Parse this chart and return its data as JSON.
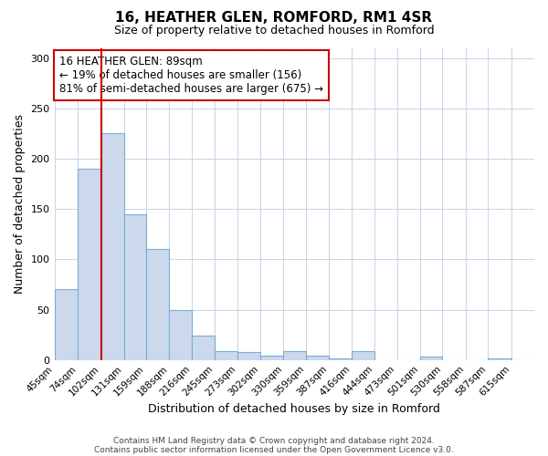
{
  "title": "16, HEATHER GLEN, ROMFORD, RM1 4SR",
  "subtitle": "Size of property relative to detached houses in Romford",
  "xlabel": "Distribution of detached houses by size in Romford",
  "ylabel": "Number of detached properties",
  "bar_labels": [
    "45sqm",
    "74sqm",
    "102sqm",
    "131sqm",
    "159sqm",
    "188sqm",
    "216sqm",
    "245sqm",
    "273sqm",
    "302sqm",
    "330sqm",
    "359sqm",
    "387sqm",
    "416sqm",
    "444sqm",
    "473sqm",
    "501sqm",
    "530sqm",
    "558sqm",
    "587sqm",
    "615sqm"
  ],
  "bar_values": [
    70,
    190,
    225,
    145,
    110,
    50,
    24,
    9,
    8,
    4,
    9,
    4,
    2,
    9,
    0,
    0,
    3,
    0,
    0,
    2,
    0
  ],
  "bar_color": "#ccd9ed",
  "bar_edgecolor": "#7aadd4",
  "bin_edges": [
    30,
    59,
    88,
    117,
    145,
    174,
    202,
    231,
    259,
    288,
    317,
    345,
    374,
    402,
    431,
    459,
    488,
    516,
    545,
    573,
    602,
    631
  ],
  "vline_x": 89,
  "vline_color": "#cc0000",
  "annotation_text": "16 HEATHER GLEN: 89sqm\n← 19% of detached houses are smaller (156)\n81% of semi-detached houses are larger (675) →",
  "annotation_box_edgecolor": "#cc0000",
  "ylim": [
    0,
    310
  ],
  "yticks": [
    0,
    50,
    100,
    150,
    200,
    250,
    300
  ],
  "footer1": "Contains HM Land Registry data © Crown copyright and database right 2024.",
  "footer2": "Contains public sector information licensed under the Open Government Licence v3.0.",
  "bg_color": "#ffffff",
  "grid_color": "#c8d4e8",
  "title_fontsize": 11,
  "subtitle_fontsize": 9,
  "annotation_fontsize": 8.5,
  "tick_fontsize": 7.5,
  "axis_label_fontsize": 9
}
